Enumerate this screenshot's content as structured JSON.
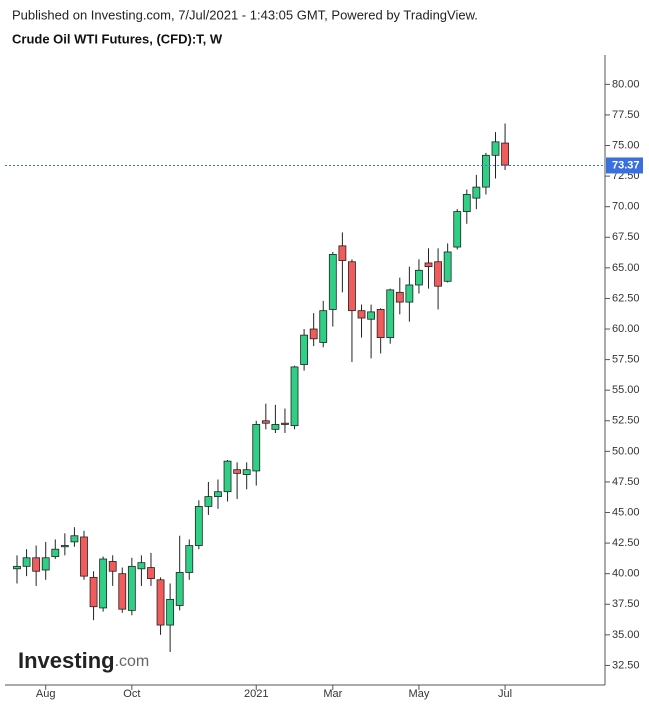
{
  "chart_data": {
    "type": "candlestick",
    "subtitle": "Published on Investing.com, 7/Jul/2021 - 1:43:05 GMT, Powered by TradingView.",
    "title": "Crude Oil WTI Futures, (CFD):T, W",
    "watermark": [
      "Investing",
      ".com"
    ],
    "categories": [
      null,
      null,
      null,
      "Aug",
      null,
      null,
      null,
      null,
      null,
      null,
      null,
      null,
      "Oct",
      null,
      null,
      null,
      null,
      null,
      null,
      null,
      null,
      null,
      null,
      null,
      null,
      "2021",
      null,
      null,
      null,
      null,
      null,
      null,
      null,
      "Mar",
      null,
      null,
      null,
      null,
      null,
      null,
      null,
      null,
      "May",
      null,
      null,
      null,
      null,
      null,
      null,
      null,
      null,
      "Jul"
    ],
    "open": [
      40.4,
      40.6,
      41.3,
      40.3,
      41.4,
      42.2,
      42.6,
      43.0,
      39.7,
      37.2,
      41.0,
      40.0,
      37.0,
      40.4,
      40.5,
      39.5,
      35.8,
      37.4,
      40.1,
      42.3,
      45.5,
      46.3,
      46.7,
      48.5,
      48.1,
      48.4,
      52.5,
      51.8,
      52.3,
      52.1,
      57.1,
      60.0,
      58.9,
      61.6,
      66.8,
      65.5,
      61.5,
      60.8,
      61.6,
      59.3,
      63.0,
      62.2,
      63.6,
      65.4,
      65.5,
      63.9,
      66.7,
      69.6,
      70.7,
      71.6,
      74.2,
      75.2
    ],
    "high": [
      41.5,
      42.0,
      42.3,
      42.6,
      42.8,
      43.3,
      43.8,
      43.5,
      40.2,
      41.4,
      41.5,
      40.5,
      41.3,
      41.5,
      41.7,
      39.7,
      39.2,
      43.1,
      42.8,
      46.0,
      47.5,
      47.7,
      49.3,
      49.1,
      49.1,
      52.5,
      53.9,
      53.8,
      53.5,
      57.0,
      60.0,
      61.3,
      62.3,
      66.3,
      67.9,
      65.7,
      62.0,
      62.0,
      61.7,
      63.3,
      64.2,
      65.1,
      65.7,
      66.6,
      66.6,
      67.0,
      69.8,
      71.4,
      72.6,
      74.4,
      76.1,
      76.8
    ],
    "low": [
      39.2,
      39.8,
      39.0,
      39.5,
      41.2,
      41.5,
      42.2,
      39.5,
      36.2,
      36.9,
      39.0,
      36.8,
      36.6,
      39.0,
      39.0,
      35.0,
      33.6,
      37.0,
      39.5,
      42.0,
      44.8,
      45.3,
      45.9,
      46.1,
      46.9,
      47.2,
      51.8,
      51.5,
      51.5,
      51.8,
      56.6,
      58.6,
      58.5,
      60.2,
      63.0,
      57.3,
      59.3,
      57.6,
      58.0,
      58.8,
      61.2,
      60.6,
      62.9,
      63.3,
      61.6,
      63.8,
      66.5,
      68.6,
      69.8,
      71.0,
      72.3,
      73.0
    ],
    "close": [
      40.6,
      41.3,
      40.2,
      41.3,
      42.0,
      42.3,
      43.1,
      39.8,
      37.3,
      41.2,
      40.2,
      37.1,
      40.6,
      40.9,
      39.6,
      35.8,
      37.9,
      40.1,
      42.3,
      45.5,
      46.3,
      46.7,
      49.2,
      48.2,
      48.5,
      52.2,
      52.3,
      52.2,
      52.2,
      56.9,
      59.5,
      59.2,
      61.5,
      66.1,
      65.6,
      61.5,
      60.9,
      61.4,
      59.3,
      63.2,
      62.2,
      63.6,
      64.8,
      65.1,
      63.5,
      66.3,
      69.6,
      71.0,
      71.6,
      74.2,
      75.3,
      73.4
    ],
    "up_color": "#2fcf85",
    "down_color": "#f25b5b",
    "last_price": 73.37,
    "last_price_color": "#3a6fe0",
    "ylim": [
      30.9,
      82.4
    ],
    "yticks": [
      {
        "value": 32.5,
        "label": "32.50"
      },
      {
        "value": 35,
        "label": "35.00"
      },
      {
        "value": 37.5,
        "label": "37.50"
      },
      {
        "value": 40,
        "label": "40.00"
      },
      {
        "value": 42.5,
        "label": "42.50"
      },
      {
        "value": 45,
        "label": "45.00"
      },
      {
        "value": 47.5,
        "label": "47.50"
      },
      {
        "value": 50,
        "label": "50.00"
      },
      {
        "value": 52.5,
        "label": "52.50"
      },
      {
        "value": 55,
        "label": "55.00"
      },
      {
        "value": 57.5,
        "label": "57.50"
      },
      {
        "value": 60,
        "label": "60.00"
      },
      {
        "value": 62.5,
        "label": "62.50"
      },
      {
        "value": 65,
        "label": "65.00"
      },
      {
        "value": 67.5,
        "label": "67.50"
      },
      {
        "value": 70,
        "label": "70.00"
      },
      {
        "value": 72.5,
        "label": "72.50"
      },
      {
        "value": 75,
        "label": "75.00"
      },
      {
        "value": 77.5,
        "label": "77.50"
      },
      {
        "value": 80,
        "label": "80.00"
      }
    ]
  }
}
